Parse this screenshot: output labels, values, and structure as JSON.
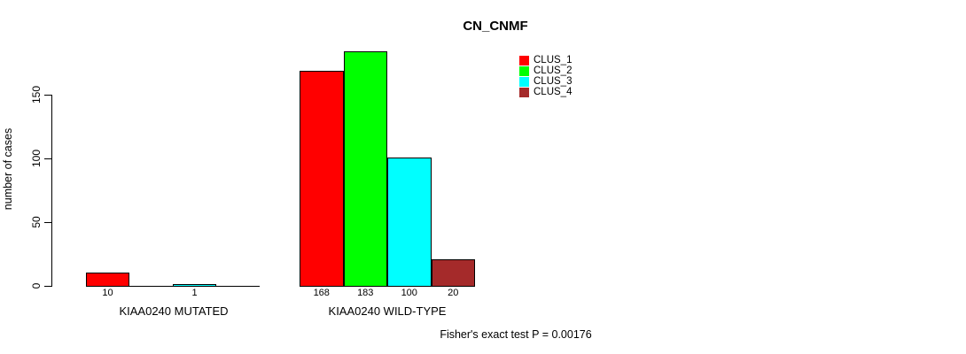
{
  "chart_data": {
    "type": "bar",
    "title": "CN_CNMF",
    "ylabel": "number of cases",
    "xlabel": "",
    "categories": [
      "KIAA0240 MUTATED",
      "KIAA0240 WILD-TYPE"
    ],
    "series": [
      {
        "name": "CLUS_1",
        "color": "#ff0000",
        "values": [
          10,
          168
        ]
      },
      {
        "name": "CLUS_2",
        "color": "#00ff00",
        "values": [
          0,
          183
        ]
      },
      {
        "name": "CLUS_3",
        "color": "#00ffff",
        "values": [
          1,
          100
        ]
      },
      {
        "name": "CLUS_4",
        "color": "#a52a2a",
        "values": [
          0,
          20
        ]
      }
    ],
    "yticks": [
      0,
      50,
      100,
      150
    ],
    "ylim": [
      0,
      150
    ],
    "bar_border_color": "#000000",
    "background_color": "#ffffff",
    "grid": false,
    "value_labels_shown_for_nonzero_only": true,
    "legend": {
      "position": "top-right",
      "entries": [
        "CLUS_1",
        "CLUS_2",
        "CLUS_3",
        "CLUS_4"
      ]
    },
    "annotation": "Fisher's exact test P = 0.00176"
  }
}
